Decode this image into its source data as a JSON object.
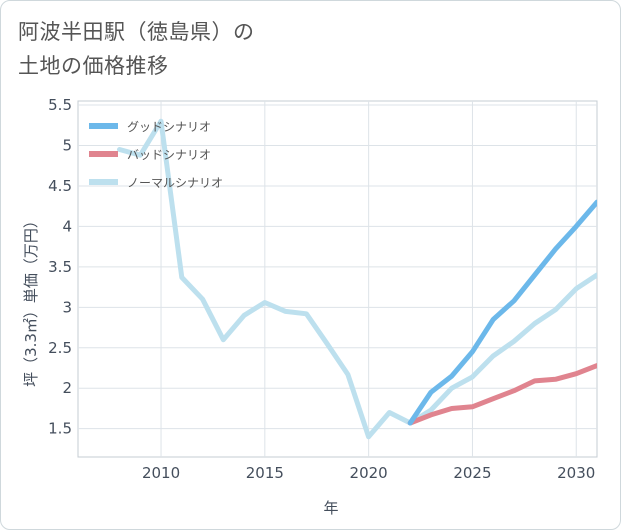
{
  "page": {
    "title_line1": "阿波半田駅（徳島県）の",
    "title_line2": "土地の価格推移"
  },
  "chart_data": {
    "type": "line",
    "title": "阿波半田駅（徳島県）の土地の価格推移",
    "xlabel": "年",
    "ylabel": "坪（3.3㎡）単価（万円）",
    "xlim": [
      2006,
      2031
    ],
    "ylim": [
      1.15,
      5.55
    ],
    "xticks": [
      2010,
      2015,
      2020,
      2025,
      2030
    ],
    "xtick_labels": [
      "2010",
      "2015",
      "2020",
      "2025",
      "2030"
    ],
    "yticks": [
      1.5,
      2,
      2.5,
      3,
      3.5,
      4,
      4.5,
      5,
      5.5
    ],
    "ytick_labels": [
      "1.5",
      "2",
      "2.5",
      "3",
      "3.5",
      "4",
      "4.5",
      "5",
      "5.5"
    ],
    "grid": true,
    "legend_position": "top-left",
    "series": [
      {
        "name": "グッドシナリオ",
        "color": "#6cb8ea",
        "x": [
          2022,
          2023,
          2024,
          2025,
          2026,
          2027,
          2028,
          2029,
          2030,
          2031
        ],
        "values": [
          1.57,
          1.95,
          2.15,
          2.45,
          2.85,
          3.08,
          3.4,
          3.72,
          4.0,
          4.3
        ]
      },
      {
        "name": "バッドシナリオ",
        "color": "#e0848f",
        "x": [
          2022,
          2023,
          2024,
          2025,
          2026,
          2027,
          2028,
          2029,
          2030,
          2031
        ],
        "values": [
          1.57,
          1.67,
          1.75,
          1.77,
          1.87,
          1.97,
          2.09,
          2.11,
          2.18,
          2.28
        ]
      },
      {
        "name": "ノーマルシナリオ",
        "color": "#bde0ee",
        "x": [
          2008,
          2009,
          2010,
          2011,
          2012,
          2013,
          2014,
          2015,
          2016,
          2017,
          2018,
          2019,
          2020,
          2021,
          2022,
          2023,
          2024,
          2025,
          2026,
          2027,
          2028,
          2029,
          2030,
          2031
        ],
        "values": [
          4.95,
          4.88,
          5.3,
          3.37,
          3.1,
          2.6,
          2.9,
          3.06,
          2.95,
          2.92,
          2.55,
          2.17,
          1.4,
          1.7,
          1.57,
          1.73,
          2.0,
          2.14,
          2.4,
          2.58,
          2.8,
          2.97,
          3.23,
          3.4
        ]
      }
    ]
  }
}
